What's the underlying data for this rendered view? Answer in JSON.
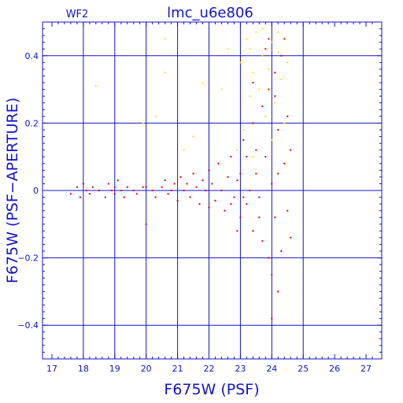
{
  "chart_data": {
    "type": "scatter",
    "title": "lmc_u6e806",
    "panel_label": "WF2",
    "xlabel": "F675W (PSF)",
    "ylabel": "F675W (PSF−APERTURE)",
    "xlim": [
      16.7,
      27.5
    ],
    "ylim": [
      -0.5,
      0.5
    ],
    "grid": true,
    "x_ticks": [
      17,
      18,
      19,
      20,
      21,
      22,
      23,
      24,
      25,
      26,
      27
    ],
    "x_tick_labels": [
      "17",
      "18",
      "19",
      "20",
      "21",
      "22",
      "23",
      "24",
      "25",
      "26",
      "27"
    ],
    "x_gridlines": [
      18,
      19,
      20,
      21,
      22,
      23,
      24,
      25
    ],
    "y_ticks": [
      -0.4,
      -0.2,
      0,
      0.2,
      0.4
    ],
    "y_tick_labels": [
      "−0.4",
      "−0.2",
      "0",
      "0.2",
      "0.4"
    ],
    "y_gridlines": [
      -0.4,
      -0.2,
      0,
      0.2,
      0.4
    ],
    "colors": {
      "frame": "#1414c8",
      "text": "#1414c8",
      "grid": "#1414c8",
      "series_red": "#e00000",
      "series_yellow": "#ffe000"
    },
    "series": [
      {
        "color": "#e00000",
        "points": [
          [
            17.6,
            -0.01
          ],
          [
            17.8,
            0.01
          ],
          [
            17.9,
            -0.02
          ],
          [
            18.0,
            0.02
          ],
          [
            18.1,
            0.0
          ],
          [
            18.2,
            -0.01
          ],
          [
            18.3,
            0.01
          ],
          [
            18.5,
            0.0
          ],
          [
            18.7,
            -0.02
          ],
          [
            18.8,
            0.02
          ],
          [
            18.9,
            0.0
          ],
          [
            19.0,
            0.01
          ],
          [
            19.0,
            -0.01
          ],
          [
            19.1,
            0.03
          ],
          [
            19.2,
            0.0
          ],
          [
            19.3,
            -0.02
          ],
          [
            19.4,
            0.01
          ],
          [
            19.6,
            0.0
          ],
          [
            19.7,
            -0.01
          ],
          [
            19.9,
            0.01
          ],
          [
            20.0,
            -0.1
          ],
          [
            20.0,
            0.01
          ],
          [
            20.2,
            0.0
          ],
          [
            20.3,
            -0.02
          ],
          [
            20.5,
            0.01
          ],
          [
            20.6,
            0.03
          ],
          [
            20.7,
            -0.01
          ],
          [
            20.8,
            0.0
          ],
          [
            20.9,
            0.02
          ],
          [
            21.0,
            -0.03
          ],
          [
            21.1,
            0.04
          ],
          [
            21.2,
            0.0
          ],
          [
            21.3,
            0.02
          ],
          [
            21.4,
            -0.02
          ],
          [
            21.5,
            0.05
          ],
          [
            21.6,
            0.01
          ],
          [
            21.7,
            -0.04
          ],
          [
            21.8,
            0.03
          ],
          [
            21.9,
            0.0
          ],
          [
            22.0,
            -0.05
          ],
          [
            22.0,
            0.06
          ],
          [
            22.1,
            0.02
          ],
          [
            22.2,
            -0.03
          ],
          [
            22.3,
            0.08
          ],
          [
            22.4,
            0.0
          ],
          [
            22.5,
            -0.06
          ],
          [
            22.6,
            0.04
          ],
          [
            22.7,
            0.1
          ],
          [
            22.8,
            -0.02
          ],
          [
            22.9,
            0.03
          ],
          [
            23.0,
            -0.08
          ],
          [
            23.0,
            0.05
          ],
          [
            23.1,
            0.15
          ],
          [
            23.2,
            -0.04
          ],
          [
            23.3,
            0.0
          ],
          [
            23.4,
            0.2
          ],
          [
            23.4,
            -0.12
          ],
          [
            23.5,
            0.05
          ],
          [
            23.6,
            -0.02
          ],
          [
            23.7,
            0.25
          ],
          [
            23.7,
            -0.15
          ],
          [
            23.8,
            0.1
          ],
          [
            23.9,
            -0.2
          ],
          [
            23.9,
            0.3
          ],
          [
            24.0,
            0.02
          ],
          [
            24.0,
            -0.25
          ],
          [
            24.1,
            0.35
          ],
          [
            24.1,
            -0.08
          ],
          [
            24.2,
            0.18
          ],
          [
            24.2,
            -0.3
          ],
          [
            24.3,
            0.4
          ],
          [
            24.3,
            -0.18
          ],
          [
            24.4,
            0.08
          ],
          [
            24.4,
            0.45
          ],
          [
            24.5,
            -0.06
          ],
          [
            24.5,
            0.22
          ],
          [
            24.6,
            0.12
          ],
          [
            24.6,
            -0.14
          ],
          [
            23.4,
            0.32
          ],
          [
            23.8,
            0.42
          ],
          [
            24.2,
            0.05
          ],
          [
            23.2,
            0.1
          ],
          [
            23.6,
            -0.08
          ],
          [
            22.9,
            -0.12
          ],
          [
            22.7,
            -0.04
          ],
          [
            23.1,
            -0.02
          ],
          [
            23.5,
            0.12
          ],
          [
            24.0,
            -0.38
          ],
          [
            24.1,
            0.28
          ],
          [
            23.9,
            0.45
          ]
        ]
      },
      {
        "color": "#ffe000",
        "points": [
          [
            18.4,
            0.31
          ],
          [
            20.6,
            0.45
          ],
          [
            20.6,
            0.35
          ],
          [
            20.3,
            0.22
          ],
          [
            21.5,
            0.16
          ],
          [
            21.8,
            0.32
          ],
          [
            22.4,
            0.3
          ],
          [
            22.6,
            0.42
          ],
          [
            23.0,
            0.38
          ],
          [
            23.2,
            0.45
          ],
          [
            23.3,
            0.28
          ],
          [
            23.4,
            0.35
          ],
          [
            23.5,
            0.47
          ],
          [
            23.6,
            0.3
          ],
          [
            23.7,
            0.4
          ],
          [
            23.8,
            0.22
          ],
          [
            23.9,
            0.36
          ],
          [
            24.0,
            0.44
          ],
          [
            24.1,
            0.26
          ],
          [
            24.2,
            0.41
          ],
          [
            24.3,
            0.33
          ],
          [
            24.4,
            0.2
          ],
          [
            24.5,
            0.38
          ],
          [
            23.1,
            0.18
          ],
          [
            22.9,
            0.12
          ],
          [
            23.4,
            0.1
          ],
          [
            24.0,
            0.15
          ],
          [
            21.2,
            0.12
          ],
          [
            19.9,
            0.2
          ],
          [
            23.7,
            0.48
          ],
          [
            24.2,
            0.47
          ],
          [
            23.3,
            0.42
          ]
        ]
      }
    ]
  }
}
